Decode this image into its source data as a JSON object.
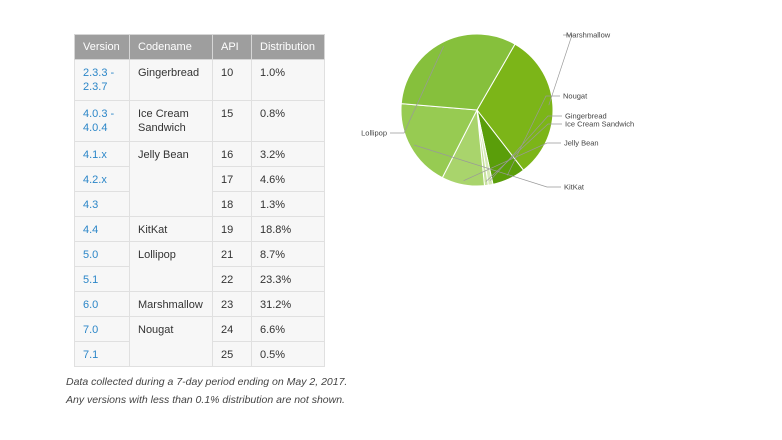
{
  "table": {
    "headers": [
      "Version",
      "Codename",
      "API",
      "Distribution"
    ],
    "rows": [
      {
        "version_line1": "2.3.3 -",
        "version_line2": "2.3.7",
        "codename_line1": "Gingerbread",
        "codename_line2": "",
        "api": "10",
        "distribution": "1.0%"
      },
      {
        "version_line1": "4.0.3 -",
        "version_line2": "4.0.4",
        "codename_line1": "Ice Cream",
        "codename_line2": "Sandwich",
        "api": "15",
        "distribution": "0.8%"
      },
      {
        "version": "4.1.x",
        "codename": "Jelly Bean",
        "api": "16",
        "distribution": "3.2%"
      },
      {
        "version": "4.2.x",
        "api": "17",
        "distribution": "4.6%"
      },
      {
        "version": "4.3",
        "api": "18",
        "distribution": "1.3%"
      },
      {
        "version": "4.4",
        "codename": "KitKat",
        "api": "19",
        "distribution": "18.8%"
      },
      {
        "version": "5.0",
        "codename": "Lollipop",
        "api": "21",
        "distribution": "8.7%"
      },
      {
        "version": "5.1",
        "api": "22",
        "distribution": "23.3%"
      },
      {
        "version": "6.0",
        "codename": "Marshmallow",
        "api": "23",
        "distribution": "31.2%"
      },
      {
        "version": "7.0",
        "codename": "Nougat",
        "api": "24",
        "distribution": "6.6%"
      },
      {
        "version": "7.1",
        "api": "25",
        "distribution": "0.5%"
      }
    ]
  },
  "footnote": {
    "line1": "Data collected during a 7-day period ending on May 2, 2017.",
    "line2": "Any versions with less than 0.1% distribution are not shown."
  },
  "chart_data": {
    "type": "pie",
    "slices": [
      {
        "name": "Marshmallow",
        "value": 31.2,
        "color": "#7cb518"
      },
      {
        "name": "Nougat",
        "value": 7.1,
        "color": "#5a9e0a"
      },
      {
        "name": "Gingerbread",
        "value": 1.0,
        "color": "#d6e9b6"
      },
      {
        "name": "Ice Cream Sandwich",
        "value": 0.8,
        "color": "#c9e2a0"
      },
      {
        "name": "Jelly Bean",
        "value": 9.1,
        "color": "#a9d46c"
      },
      {
        "name": "KitKat",
        "value": 18.8,
        "color": "#97cb52"
      },
      {
        "name": "Lollipop",
        "value": 32.0,
        "color": "#86c03c"
      }
    ],
    "start_angle_deg": -60
  }
}
